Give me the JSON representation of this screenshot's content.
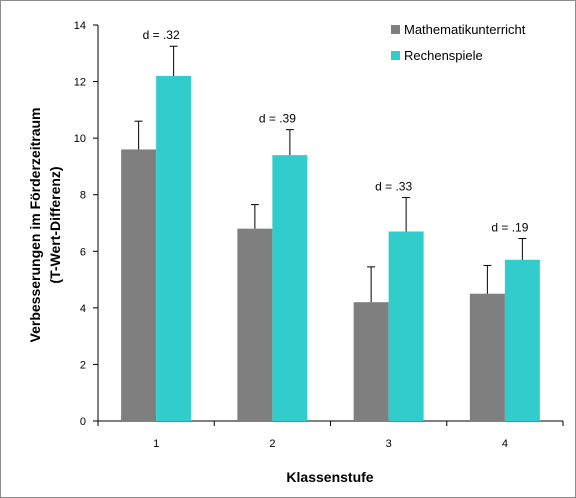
{
  "chart_data": {
    "type": "bar",
    "categories": [
      "1",
      "2",
      "3",
      "4"
    ],
    "series": [
      {
        "name": "Mathematikunterricht",
        "color": "#7f7f7f",
        "values": [
          9.6,
          6.8,
          4.2,
          4.5
        ],
        "error_upper": [
          10.6,
          7.65,
          5.45,
          5.5
        ]
      },
      {
        "name": "Rechenspiele",
        "color": "#33cccc",
        "values": [
          12.2,
          9.4,
          6.7,
          5.7
        ],
        "error_upper": [
          13.25,
          10.3,
          7.9,
          6.45
        ]
      }
    ],
    "effect_labels": [
      "d = .32",
      "d = .39",
      "d = .33",
      "d = .19"
    ],
    "xlabel": "Klassenstufe",
    "ylabel_line1": "Verbesserungen im Förderzeitraum",
    "ylabel_line2": "(T-Wert-Differenz)",
    "ylim": [
      0,
      14
    ],
    "yticks": [
      "0",
      "2",
      "4",
      "6",
      "8",
      "10",
      "12",
      "14"
    ],
    "grid": false,
    "legend_position": "top-right"
  }
}
